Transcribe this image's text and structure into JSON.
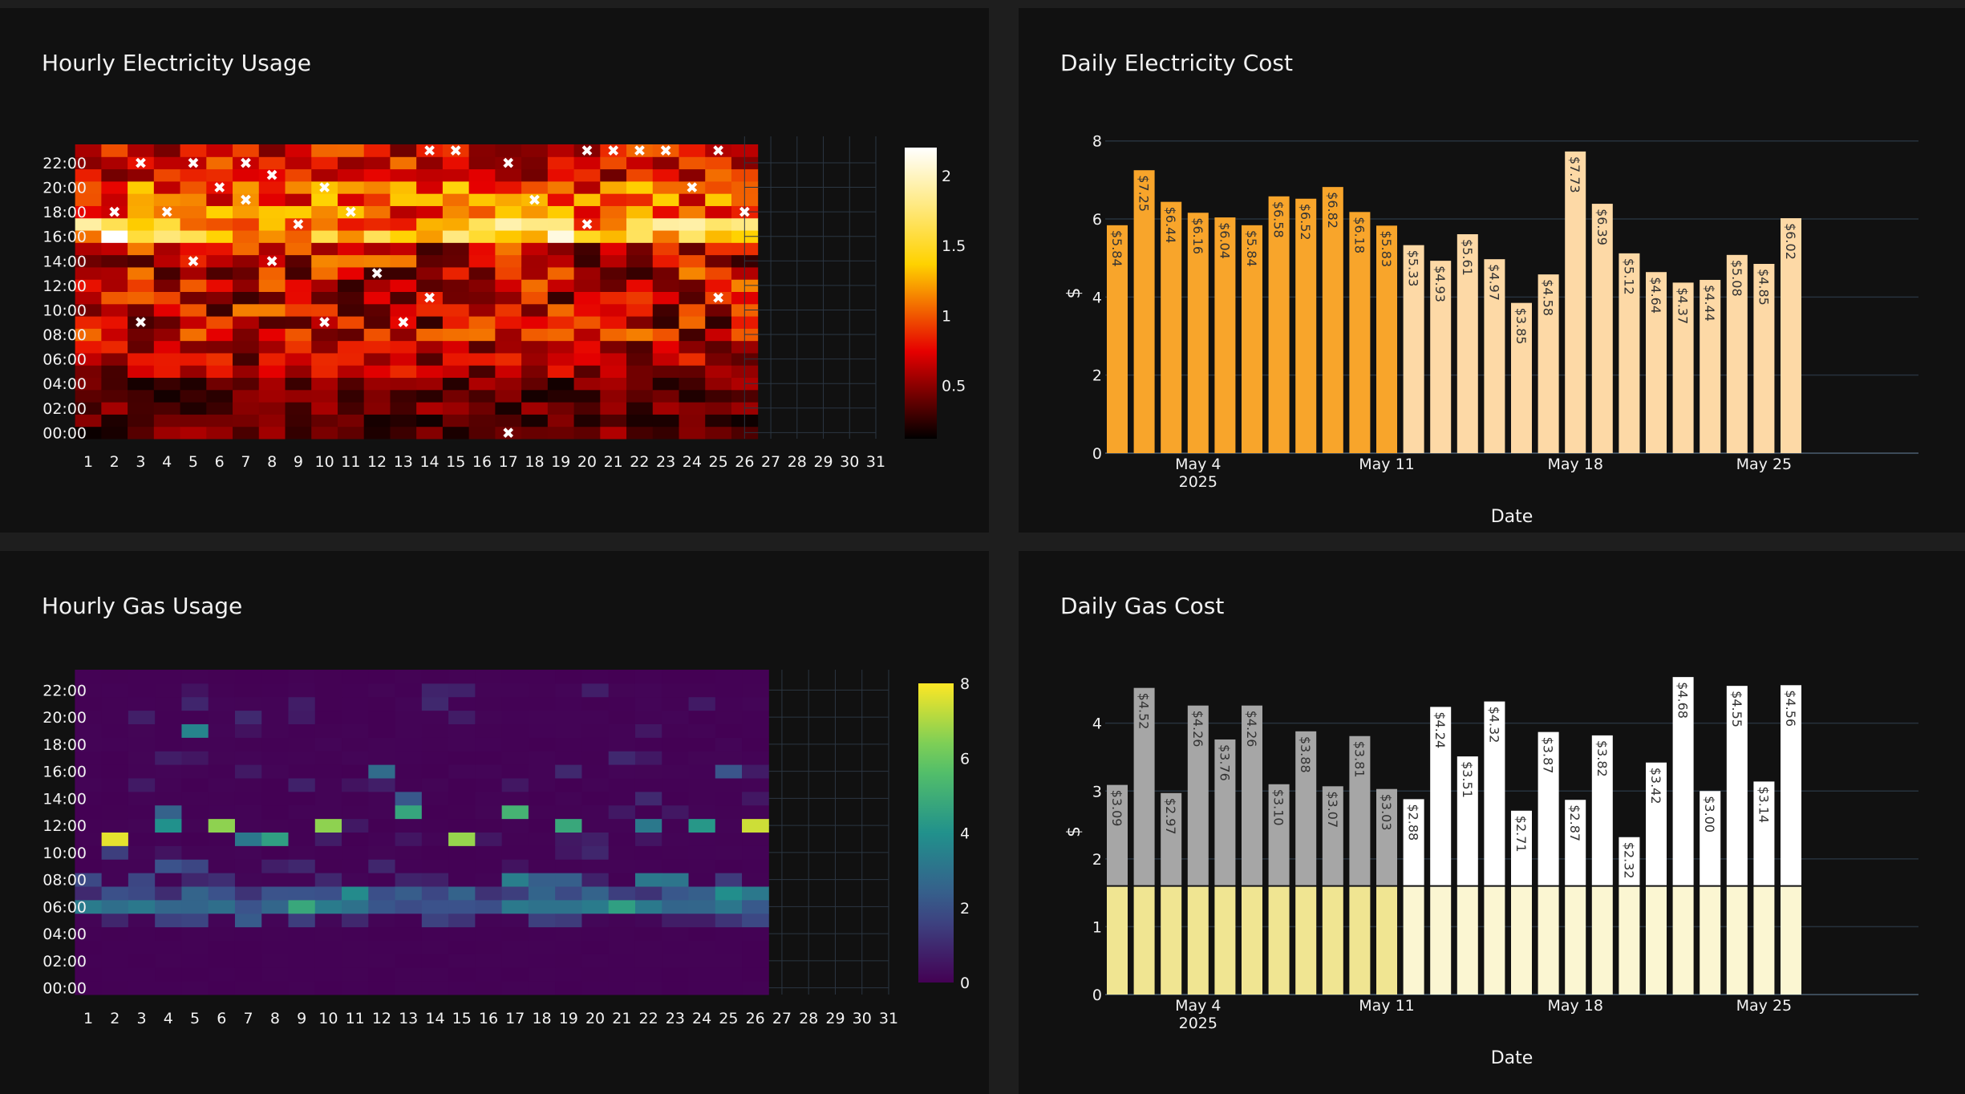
{
  "chart_data": [
    {
      "id": "elec-usage",
      "type": "heatmap",
      "title": "Hourly Electricity Usage",
      "colorscale": "Hot",
      "x_ticks": [
        "1",
        "2",
        "3",
        "4",
        "5",
        "6",
        "7",
        "8",
        "9",
        "10",
        "11",
        "12",
        "13",
        "14",
        "15",
        "16",
        "17",
        "18",
        "19",
        "20",
        "21",
        "22",
        "23",
        "24",
        "25",
        "26",
        "27",
        "28",
        "29",
        "30",
        "31"
      ],
      "y_ticks": [
        "00:00",
        "02:00",
        "04:00",
        "06:00",
        "08:00",
        "10:00",
        "12:00",
        "14:00",
        "16:00",
        "18:00",
        "20:00",
        "22:00"
      ],
      "days_with_data": 26,
      "zmin": 0.12,
      "zmax": 2.2,
      "colorbar_ticks": [
        "0.5",
        "1",
        "1.5",
        "2"
      ],
      "colorbar_values": [
        0.5,
        1,
        1.5,
        2
      ],
      "evening_peak_days": [
        1,
        2,
        4,
        16,
        17,
        18,
        19,
        22,
        23,
        24,
        25,
        26
      ],
      "marker_symbol": "✖",
      "markers": [
        [
          14,
          23
        ],
        [
          15,
          23
        ],
        [
          20,
          23
        ],
        [
          21,
          23
        ],
        [
          22,
          23
        ],
        [
          23,
          23
        ],
        [
          25,
          23
        ],
        [
          3,
          22
        ],
        [
          5,
          22
        ],
        [
          7,
          22
        ],
        [
          17,
          22
        ],
        [
          8,
          21
        ],
        [
          6,
          20
        ],
        [
          10,
          20
        ],
        [
          24,
          20
        ],
        [
          7,
          19
        ],
        [
          18,
          19
        ],
        [
          2,
          18
        ],
        [
          4,
          18
        ],
        [
          11,
          18
        ],
        [
          26,
          18
        ],
        [
          9,
          17
        ],
        [
          20,
          17
        ],
        [
          5,
          14
        ],
        [
          8,
          14
        ],
        [
          12,
          13
        ],
        [
          14,
          11
        ],
        [
          25,
          11
        ],
        [
          10,
          9
        ],
        [
          13,
          9
        ],
        [
          3,
          9
        ],
        [
          17,
          0
        ]
      ]
    },
    {
      "id": "elec-cost",
      "type": "bar",
      "title": "Daily Electricity Cost",
      "xlabel": "Date",
      "ylabel": "$",
      "ylim": [
        0,
        8.2
      ],
      "yticks": [
        0,
        2,
        4,
        6,
        8
      ],
      "x_ticks": [
        {
          "day": 4,
          "label": "May 4",
          "sub": "2025"
        },
        {
          "day": 11,
          "label": "May 11"
        },
        {
          "day": 18,
          "label": "May 18"
        },
        {
          "day": 25,
          "label": "May 25"
        }
      ],
      "days": [
        1,
        2,
        3,
        4,
        5,
        6,
        7,
        8,
        9,
        10,
        11,
        12,
        13,
        14,
        15,
        16,
        17,
        18,
        19,
        20,
        21,
        22,
        23,
        24,
        25,
        26
      ],
      "values": [
        5.84,
        7.25,
        6.44,
        6.16,
        6.04,
        5.84,
        6.58,
        6.52,
        6.82,
        6.18,
        5.83,
        5.33,
        4.93,
        5.61,
        4.97,
        3.85,
        4.58,
        7.73,
        6.39,
        5.12,
        4.64,
        4.37,
        4.44,
        5.08,
        4.85,
        6.02
      ],
      "labels": [
        "$5.84",
        "$7.25",
        "$6.44",
        "$6.16",
        "$6.04",
        "$5.84",
        "$6.58",
        "$6.52",
        "$6.82",
        "$6.18",
        "$5.83",
        "$5.33",
        "$4.93",
        "$5.61",
        "$4.97",
        "$3.85",
        "$4.58",
        "$7.73",
        "$6.39",
        "$5.12",
        "$4.64",
        "$4.37",
        "$4.44",
        "$5.08",
        "$4.85",
        "$6.02"
      ],
      "bar_colors_by_day": {
        "1-11": "#f8a52b",
        "12-26": "#fdd9a6"
      }
    },
    {
      "id": "gas-usage",
      "type": "heatmap",
      "title": "Hourly Gas Usage",
      "colorscale": "Viridis",
      "x_ticks": [
        "1",
        "2",
        "3",
        "4",
        "5",
        "6",
        "7",
        "8",
        "9",
        "10",
        "11",
        "12",
        "13",
        "14",
        "15",
        "16",
        "17",
        "18",
        "19",
        "20",
        "21",
        "22",
        "23",
        "24",
        "25",
        "26",
        "27",
        "28",
        "29",
        "30",
        "31"
      ],
      "y_ticks": [
        "00:00",
        "02:00",
        "04:00",
        "06:00",
        "08:00",
        "10:00",
        "12:00",
        "14:00",
        "16:00",
        "18:00",
        "20:00",
        "22:00"
      ],
      "days_with_data": 26,
      "zmin": 0,
      "zmax": 8,
      "colorbar_ticks": [
        "0",
        "2",
        "4",
        "6",
        "8"
      ],
      "colorbar_values": [
        0,
        2,
        4,
        6,
        8
      ],
      "cells": [
        [
          2,
          11,
          7.7
        ],
        [
          2,
          10,
          1.5
        ],
        [
          6,
          12,
          6.6
        ],
        [
          10,
          12,
          6.6
        ],
        [
          15,
          11,
          6.7
        ],
        [
          26,
          12,
          7.4
        ],
        [
          17,
          13,
          5.2
        ],
        [
          19,
          12,
          4.8
        ],
        [
          13,
          13,
          4.7
        ],
        [
          4,
          12,
          4.0
        ],
        [
          22,
          12,
          3.2
        ],
        [
          24,
          12,
          4.2
        ],
        [
          7,
          11,
          3.2
        ],
        [
          8,
          11,
          4.5
        ],
        [
          5,
          19,
          3.6
        ],
        [
          12,
          16,
          2.8
        ],
        [
          25,
          16,
          2.1
        ],
        [
          13,
          14,
          2.2
        ],
        [
          4,
          13,
          2.5
        ],
        [
          1,
          6,
          3.3
        ],
        [
          2,
          6,
          2.9
        ],
        [
          9,
          6,
          4.8
        ],
        [
          21,
          6,
          4.5
        ],
        [
          11,
          7,
          3.8
        ],
        [
          25,
          7,
          3.9
        ],
        [
          26,
          7,
          3.2
        ],
        [
          22,
          8,
          3.2
        ],
        [
          23,
          8,
          3.1
        ],
        [
          7,
          5,
          2.3
        ],
        [
          4,
          9,
          2.0
        ],
        [
          5,
          9,
          1.7
        ],
        [
          18,
          8,
          2.4
        ],
        [
          19,
          8,
          2.4
        ],
        [
          17,
          8,
          3.4
        ]
      ]
    },
    {
      "id": "gas-cost",
      "type": "bar",
      "title": "Daily Gas Cost",
      "xlabel": "Date",
      "ylabel": "$",
      "ylim": [
        0,
        4.8
      ],
      "yticks": [
        0,
        1,
        2,
        3,
        4
      ],
      "x_ticks": [
        {
          "day": 4,
          "label": "May 4",
          "sub": "2025"
        },
        {
          "day": 11,
          "label": "May 11"
        },
        {
          "day": 18,
          "label": "May 18"
        },
        {
          "day": 25,
          "label": "May 25"
        }
      ],
      "days": [
        1,
        2,
        3,
        4,
        5,
        6,
        7,
        8,
        9,
        10,
        11,
        12,
        13,
        14,
        15,
        16,
        17,
        18,
        19,
        20,
        21,
        22,
        23,
        24,
        25,
        26
      ],
      "base_value": 1.6,
      "values": [
        3.09,
        4.52,
        2.97,
        4.26,
        3.76,
        4.26,
        3.1,
        3.88,
        3.07,
        3.81,
        3.03,
        2.88,
        4.24,
        3.51,
        4.32,
        2.71,
        3.87,
        2.87,
        3.82,
        2.32,
        3.42,
        4.68,
        3.0,
        4.55,
        3.14,
        4.56
      ],
      "labels": [
        "$3.09",
        "$4.52",
        "$2.97",
        "$4.26",
        "$3.76",
        "$4.26",
        "$3.10",
        "$3.88",
        "$3.07",
        "$3.81",
        "$3.03",
        "$2.88",
        "$4.24",
        "$3.51",
        "$4.32",
        "$2.71",
        "$3.87",
        "$2.87",
        "$3.82",
        "$2.32",
        "$3.42",
        "$4.68",
        "$3.00",
        "$4.55",
        "$3.14",
        "$4.56"
      ]
    }
  ]
}
